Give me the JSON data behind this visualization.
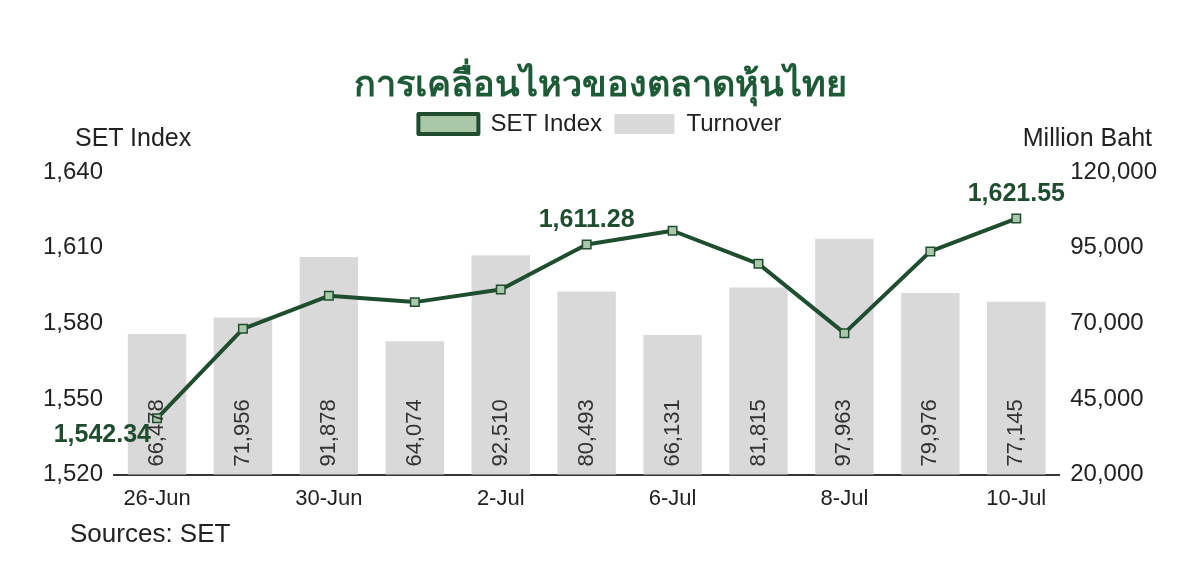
{
  "chart_data": {
    "type": "bar",
    "title": "การเคลื่อนไหวของตลาดหุ้นไทย",
    "ylabel": "SET Index",
    "y2label": "Million Baht",
    "categories": [
      "26-Jun",
      null,
      "30-Jun",
      null,
      "2-Jul",
      null,
      "6-Jul",
      null,
      "8-Jul",
      null,
      "10-Jul"
    ],
    "series": [
      {
        "name": "Turnover",
        "axis": "y2",
        "color": "#d9d9d9",
        "values": [
          66478,
          71956,
          91878,
          64074,
          92510,
          80493,
          66131,
          81815,
          97963,
          79976,
          77145
        ],
        "value_labels": [
          "66,478",
          "71,956",
          "91,878",
          "64,074",
          "92,510",
          "80,493",
          "66,131",
          "81,815",
          "97,963",
          "79,976",
          "77,145"
        ]
      },
      {
        "name": "SET Index",
        "type": "line",
        "axis": "y",
        "color": "#1f4e2f",
        "values": [
          1542.34,
          1577.8,
          1590.9,
          1588.4,
          1593.4,
          1611.28,
          1616.7,
          1603.6,
          1576.1,
          1608.5,
          1621.55
        ],
        "value_labels": [
          "1,542.34",
          null,
          null,
          null,
          null,
          "1,611.28",
          null,
          null,
          null,
          null,
          "1,621.55"
        ]
      }
    ],
    "ylim": [
      1520,
      1640
    ],
    "yticks": [
      {
        "value": 1520,
        "label": "1,520"
      },
      {
        "value": 1550,
        "label": "1,550"
      },
      {
        "value": 1580,
        "label": "1,580"
      },
      {
        "value": 1610,
        "label": "1,610"
      },
      {
        "value": 1640,
        "label": "1,640"
      }
    ],
    "y2lim": [
      20000,
      120000
    ],
    "y2ticks": [
      {
        "value": 20000,
        "label": "20,000"
      },
      {
        "value": 45000,
        "label": "45,000"
      },
      {
        "value": 70000,
        "label": "70,000"
      },
      {
        "value": 95000,
        "label": "95,000"
      },
      {
        "value": 120000,
        "label": "120,000"
      }
    ],
    "legend": "top",
    "marker": "square",
    "grid": false,
    "annotations": [
      "Sources: SET"
    ]
  }
}
